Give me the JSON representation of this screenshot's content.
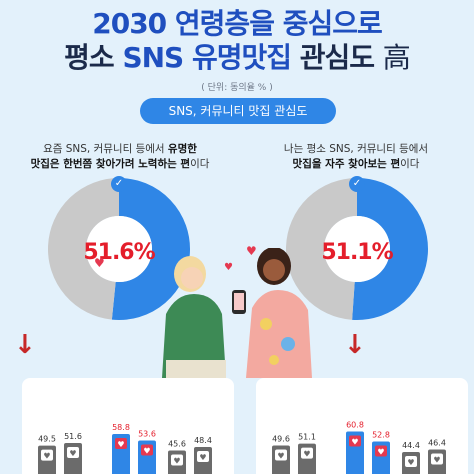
{
  "header": {
    "line1": "2030 연령층을 중심으로",
    "line2_a": "평소 ",
    "line2_b": "SNS 유명맛집",
    "line2_c": " 관심도 ",
    "line2_d": "高",
    "unit": "( 단위: 동의율 % )",
    "pill": "SNS, 커뮤니티 맛집 관심도"
  },
  "left": {
    "caption_a": "요즘 SNS, 커뮤니티 등에서 ",
    "caption_b": "유명한",
    "caption_c": "맛집은 한번쯤 찾아가려 노력하는 편",
    "caption_d": "이다",
    "percent": "51.6%",
    "color_main": "#2f86e6",
    "color_rest": "#c9c9c9"
  },
  "right": {
    "caption_a": "나는 평소 SNS, 커뮤니티 등에서",
    "caption_b": "맛집을 자주 찾아보는 편",
    "caption_c": "이다",
    "percent": "51.1%",
    "color_main": "#2f86e6",
    "color_rest": "#c9c9c9"
  },
  "chart_data": [
    {
      "type": "pie",
      "values": [
        51.6,
        48.4
      ],
      "label": "51.6%"
    },
    {
      "type": "pie",
      "values": [
        51.1,
        48.9
      ],
      "label": "51.1%"
    },
    {
      "type": "bar",
      "values": [
        49.5,
        51.6,
        58.8,
        53.6,
        45.6,
        48.4
      ],
      "highlight": [
        2,
        3
      ]
    },
    {
      "type": "bar",
      "values": [
        49.6,
        51.1,
        60.8,
        52.8,
        44.4,
        46.4
      ],
      "highlight": [
        2,
        3
      ]
    }
  ]
}
